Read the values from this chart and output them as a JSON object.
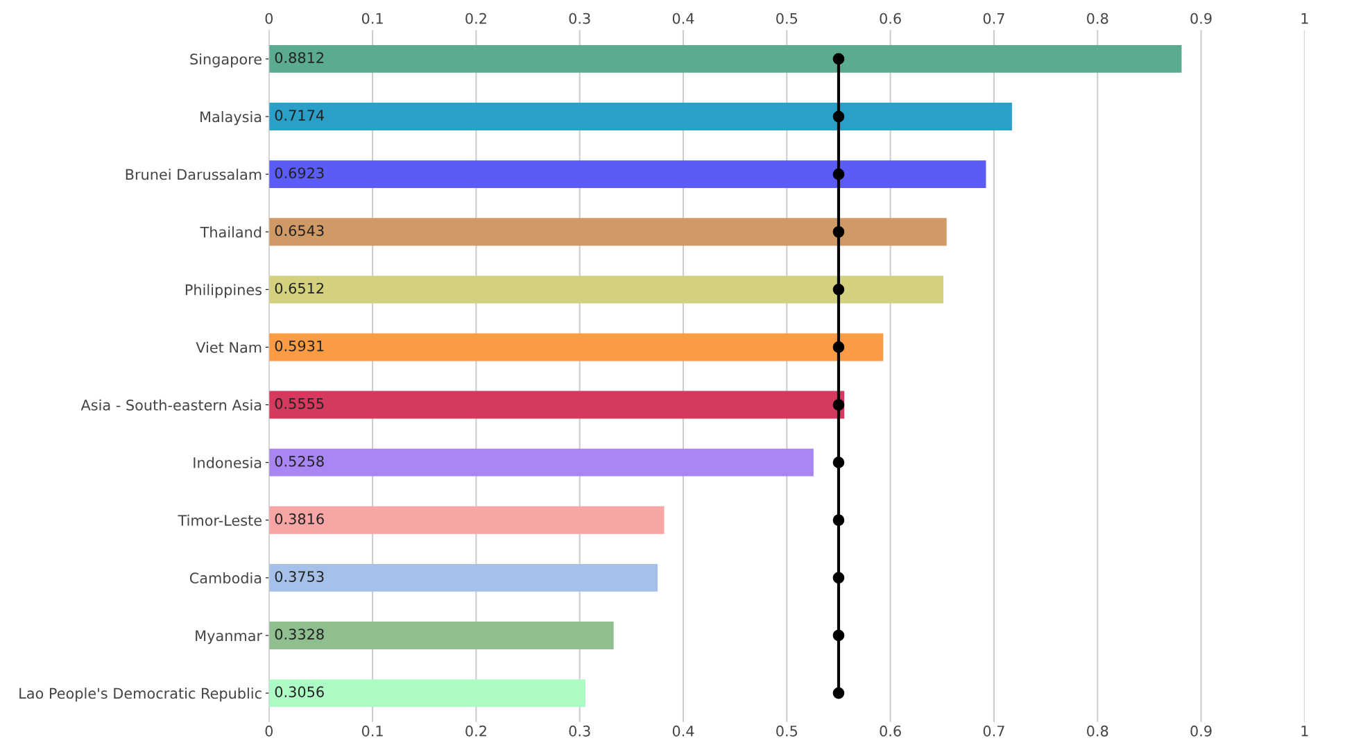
{
  "chart_data": {
    "type": "bar",
    "orientation": "horizontal",
    "categories": [
      "Singapore",
      "Malaysia",
      "Brunei Darussalam",
      "Thailand",
      "Philippines",
      "Viet Nam",
      "Asia - South-eastern Asia",
      "Indonesia",
      "Timor-Leste",
      "Cambodia",
      "Myanmar",
      "Lao People's Democratic Republic"
    ],
    "series": [
      {
        "values": [
          0.8812,
          0.7174,
          0.6923,
          0.6543,
          0.6512,
          0.5931,
          0.5555,
          0.5258,
          0.3816,
          0.3753,
          0.3328,
          0.3056
        ],
        "value_labels": [
          "0.8812",
          "0.7174",
          "0.6923",
          "0.6543",
          "0.6512",
          "0.5931",
          "0.5555",
          "0.5258",
          "0.3816",
          "0.3753",
          "0.3328",
          "0.3056"
        ],
        "colors": [
          "#5aab92",
          "#2a9fc8",
          "#5b5bf5",
          "#d09a66",
          "#d3d17d",
          "#fb9b43",
          "#d5395e",
          "#a987f3",
          "#f8a5a5",
          "#a5c1ea",
          "#8fbf8f",
          "#adfcc5"
        ]
      },
      {
        "type": "line",
        "color": "#000000",
        "marker": "circle",
        "values": [
          0.55,
          0.55,
          0.55,
          0.55,
          0.55,
          0.55,
          0.55,
          0.55,
          0.55,
          0.55,
          0.55,
          0.55
        ]
      }
    ],
    "xlim": [
      0,
      1
    ],
    "xticks": [
      0,
      0.1,
      0.2,
      0.3,
      0.4,
      0.5,
      0.6,
      0.7,
      0.8,
      0.9,
      1
    ],
    "x2lim": [
      0,
      1
    ],
    "x2ticks": [
      0,
      0.1,
      0.2,
      0.3,
      0.4,
      0.5,
      0.6,
      0.7,
      0.8,
      0.9,
      1
    ],
    "grid": "x",
    "legend": false
  }
}
